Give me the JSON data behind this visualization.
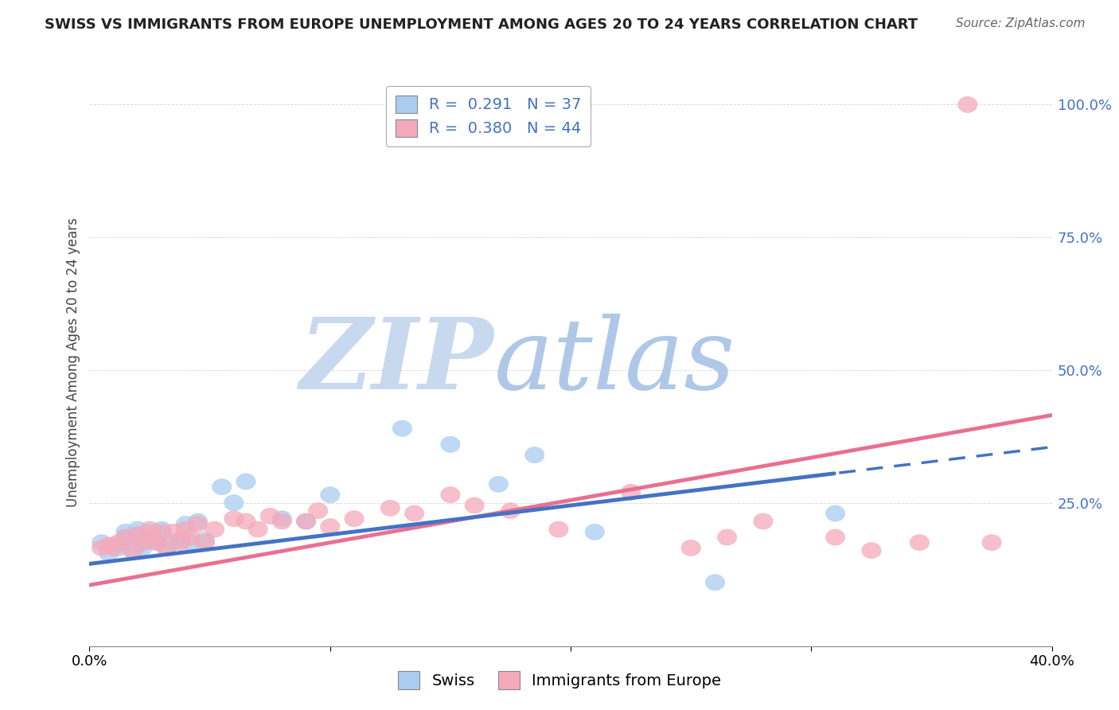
{
  "title": "SWISS VS IMMIGRANTS FROM EUROPE UNEMPLOYMENT AMONG AGES 20 TO 24 YEARS CORRELATION CHART",
  "source": "Source: ZipAtlas.com",
  "ylabel": "Unemployment Among Ages 20 to 24 years",
  "xlim": [
    0.0,
    0.4
  ],
  "ylim": [
    -0.02,
    1.05
  ],
  "xticks": [
    0.0,
    0.1,
    0.2,
    0.3,
    0.4
  ],
  "xticklabels": [
    "0.0%",
    "",
    "",
    "",
    "40.0%"
  ],
  "ytick_positions": [
    0.25,
    0.5,
    0.75,
    1.0
  ],
  "ytick_labels": [
    "25.0%",
    "50.0%",
    "75.0%",
    "100.0%"
  ],
  "swiss_R": 0.291,
  "swiss_N": 37,
  "immig_R": 0.38,
  "immig_N": 44,
  "swiss_color": "#aaccf0",
  "immig_color": "#f5aabb",
  "swiss_line_color": "#4472c4",
  "immig_line_color": "#e87090",
  "watermark_zip": "ZIP",
  "watermark_atlas": "atlas",
  "watermark_color_zip": "#c8d8ee",
  "watermark_color_atlas": "#b0c8e8",
  "swiss_x": [
    0.005,
    0.008,
    0.01,
    0.012,
    0.015,
    0.015,
    0.018,
    0.018,
    0.02,
    0.02,
    0.022,
    0.022,
    0.024,
    0.025,
    0.028,
    0.028,
    0.03,
    0.032,
    0.035,
    0.038,
    0.04,
    0.042,
    0.045,
    0.048,
    0.055,
    0.06,
    0.065,
    0.08,
    0.09,
    0.1,
    0.13,
    0.15,
    0.17,
    0.185,
    0.21,
    0.26,
    0.31
  ],
  "swiss_y": [
    0.175,
    0.155,
    0.17,
    0.165,
    0.185,
    0.195,
    0.175,
    0.16,
    0.2,
    0.185,
    0.175,
    0.165,
    0.195,
    0.18,
    0.195,
    0.175,
    0.2,
    0.165,
    0.175,
    0.18,
    0.21,
    0.175,
    0.215,
    0.18,
    0.28,
    0.25,
    0.29,
    0.22,
    0.215,
    0.265,
    0.39,
    0.36,
    0.285,
    0.34,
    0.195,
    0.1,
    0.23
  ],
  "immig_x": [
    0.005,
    0.008,
    0.01,
    0.012,
    0.015,
    0.018,
    0.02,
    0.022,
    0.025,
    0.025,
    0.028,
    0.03,
    0.032,
    0.035,
    0.038,
    0.04,
    0.042,
    0.045,
    0.048,
    0.052,
    0.06,
    0.065,
    0.07,
    0.075,
    0.08,
    0.09,
    0.095,
    0.1,
    0.11,
    0.125,
    0.135,
    0.15,
    0.16,
    0.175,
    0.195,
    0.225,
    0.25,
    0.265,
    0.28,
    0.31,
    0.325,
    0.345,
    0.365,
    0.375
  ],
  "immig_y": [
    0.165,
    0.17,
    0.165,
    0.175,
    0.185,
    0.16,
    0.19,
    0.175,
    0.185,
    0.2,
    0.175,
    0.195,
    0.165,
    0.195,
    0.175,
    0.2,
    0.185,
    0.21,
    0.175,
    0.2,
    0.22,
    0.215,
    0.2,
    0.225,
    0.215,
    0.215,
    0.235,
    0.205,
    0.22,
    0.24,
    0.23,
    0.265,
    0.245,
    0.235,
    0.2,
    0.27,
    0.165,
    0.185,
    0.215,
    0.185,
    0.16,
    0.175,
    1.0,
    0.175
  ],
  "swiss_line_intercept": 0.135,
  "swiss_line_slope": 0.55,
  "swiss_line_solid_end": 0.31,
  "immig_line_intercept": 0.095,
  "immig_line_slope": 0.8,
  "background_color": "#ffffff",
  "grid_color": "#cccccc"
}
